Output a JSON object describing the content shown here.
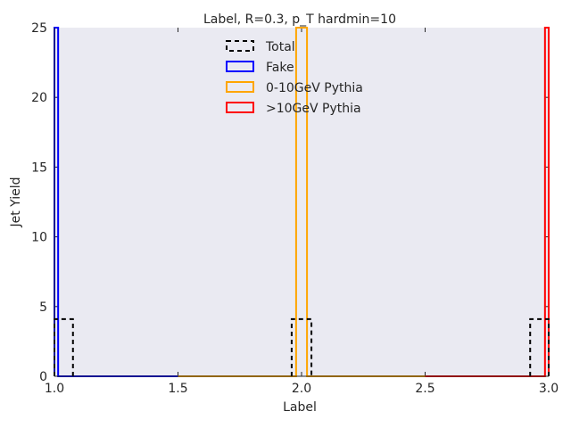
{
  "chart_data": {
    "type": "histogram",
    "title": "Label, R=0.3, p_T hardmin=10",
    "xlabel": "Label",
    "ylabel": "Jet Yield",
    "xlim": [
      1.0,
      3.0
    ],
    "ylim": [
      0,
      25
    ],
    "xticks": [
      "1.0",
      "1.5",
      "2.0",
      "2.5",
      "3.0"
    ],
    "yticks": [
      "0",
      "5",
      "10",
      "15",
      "20",
      "25"
    ],
    "grid": false,
    "background": "#eaeaf2",
    "legend_position": "top-center",
    "series": [
      {
        "name": "Total",
        "style": "dashed",
        "color": "#000000",
        "bins": [
          {
            "x0": 1.0,
            "x1": 1.075,
            "value": 4.1
          },
          {
            "x0": 1.96,
            "x1": 2.04,
            "value": 4.1
          },
          {
            "x0": 2.925,
            "x1": 3.0,
            "value": 4.1
          }
        ]
      },
      {
        "name": "Fake",
        "style": "solid",
        "color": "#0000ff",
        "bins": [
          {
            "x0": 1.0,
            "x1": 1.015,
            "value": 25
          },
          {
            "x0": 1.015,
            "x1": 1.5,
            "value": 0
          }
        ]
      },
      {
        "name": "0-10GeV Pythia",
        "style": "solid",
        "color": "#ffa500",
        "bins": [
          {
            "x0": 1.5,
            "x1": 1.978,
            "value": 0
          },
          {
            "x0": 1.978,
            "x1": 2.022,
            "value": 25
          },
          {
            "x0": 2.022,
            "x1": 2.5,
            "value": 0
          }
        ]
      },
      {
        "name": ">10GeV Pythia",
        "style": "solid",
        "color": "#ff0000",
        "bins": [
          {
            "x0": 2.5,
            "x1": 2.985,
            "value": 0
          },
          {
            "x0": 2.985,
            "x1": 3.0,
            "value": 25
          }
        ]
      }
    ]
  }
}
